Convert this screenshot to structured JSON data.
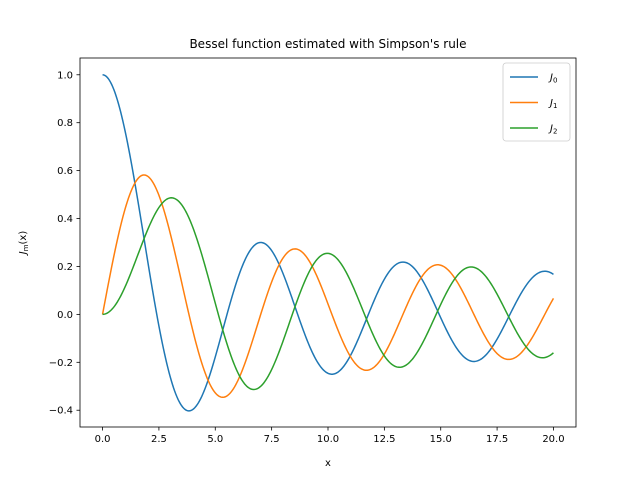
{
  "chart_data": {
    "type": "line",
    "title": "Bessel function estimated with Simpson's rule",
    "xlabel": "x",
    "ylabel_main": "J",
    "ylabel_sub": "m",
    "ylabel_tail": "(x)",
    "xlim": [
      -1,
      21
    ],
    "ylim": [
      -0.47,
      1.07
    ],
    "xticks": [
      0,
      2.5,
      5,
      7.5,
      10,
      12.5,
      15,
      17.5,
      20
    ],
    "xtick_labels": [
      "0.0",
      "2.5",
      "5.0",
      "7.5",
      "10.0",
      "12.5",
      "15.0",
      "17.5",
      "20.0"
    ],
    "yticks": [
      -0.4,
      -0.2,
      0,
      0.2,
      0.4,
      0.6,
      0.8,
      1.0
    ],
    "ytick_labels": [
      "−0.4",
      "−0.2",
      "0.0",
      "0.2",
      "0.4",
      "0.6",
      "0.8",
      "1.0"
    ],
    "grid": false,
    "legend_position": "top-right",
    "x_domain": [
      0,
      20
    ],
    "series": [
      {
        "name_main": "J",
        "name_sub": "0",
        "order": 0,
        "color": "#1f77b4"
      },
      {
        "name_main": "J",
        "name_sub": "1",
        "order": 1,
        "color": "#ff7f0e"
      },
      {
        "name_main": "J",
        "name_sub": "2",
        "order": 2,
        "color": "#2ca02c"
      }
    ]
  }
}
